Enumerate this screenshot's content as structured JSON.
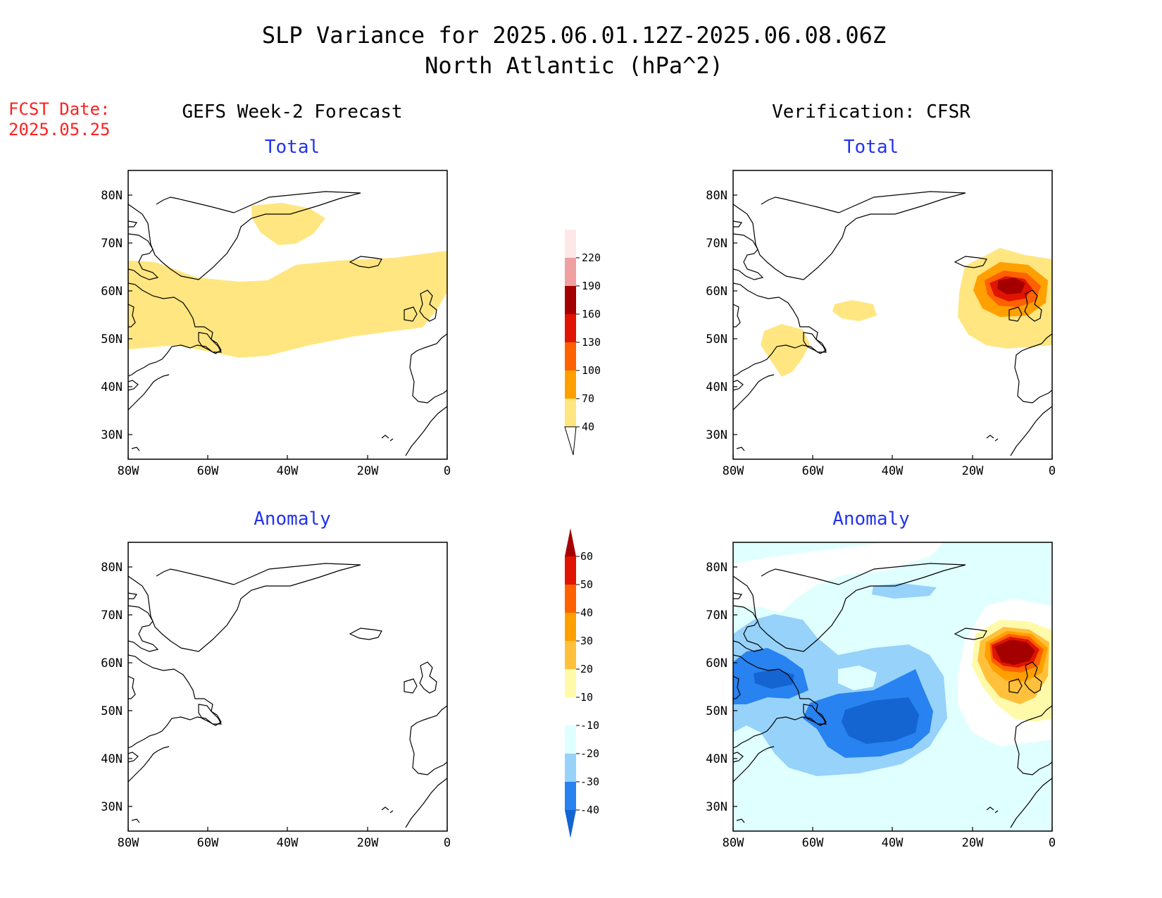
{
  "title_line1": "SLP Variance for 2025.06.01.12Z-2025.06.08.06Z",
  "title_line2": "North Atlantic (hPa^2)",
  "fcst_label": "FCST Date:",
  "fcst_date": "2025.05.25",
  "left_header": "GEFS Week-2 Forecast",
  "right_header": "Verification: CFSR",
  "panel_total": "Total",
  "panel_anomaly": "Anomaly",
  "lat_labels": [
    "80N",
    "70N",
    "60N",
    "50N",
    "40N",
    "30N"
  ],
  "lon_labels": [
    "80W",
    "60W",
    "40W",
    "20W",
    "0"
  ],
  "colors": {
    "title": "#000000",
    "fcst": "#ff2020",
    "panel_title": "#2233ee"
  },
  "colorbar_total": {
    "labels": [
      "40",
      "70",
      "100",
      "130",
      "160",
      "190",
      "220"
    ],
    "colors": [
      "#ffe680",
      "#ffa000",
      "#ff6000",
      "#e01400",
      "#a50000",
      "#f0a0a0",
      "#fde8e8"
    ]
  },
  "colorbar_anomaly": {
    "labels": [
      "-40",
      "-30",
      "-20",
      "-10",
      "10",
      "20",
      "30",
      "40",
      "50",
      "60"
    ],
    "colors": [
      "#1464d2",
      "#2882f0",
      "#96d2fa",
      "#e0ffff",
      "#ffffff",
      "#fffaaa",
      "#ffc03c",
      "#ffa000",
      "#ff6000",
      "#e01400",
      "#a50000"
    ]
  },
  "map_data": {
    "lon_range": [
      -80,
      0
    ],
    "lat_range": [
      25,
      85
    ],
    "gefs_total_regions": [
      "40-70 band across Labrador to British Isles (55-65N)",
      "40-70 patch over central Greenland"
    ],
    "gefs_anomaly_regions": [],
    "cfsr_total_regions": [
      "40-160 maximum west of Scotland near 62N 10W",
      "40-70 patch near 50N 65W",
      "40-70 patch near 55N 47W"
    ],
    "cfsr_anomaly_regions": [
      "positive >60 near 60N 10W",
      "negative -30 to -40 near 47N 45W",
      "negative -30 near Labrador 57N 70W",
      "weak negative broadly over North Atlantic"
    ]
  }
}
